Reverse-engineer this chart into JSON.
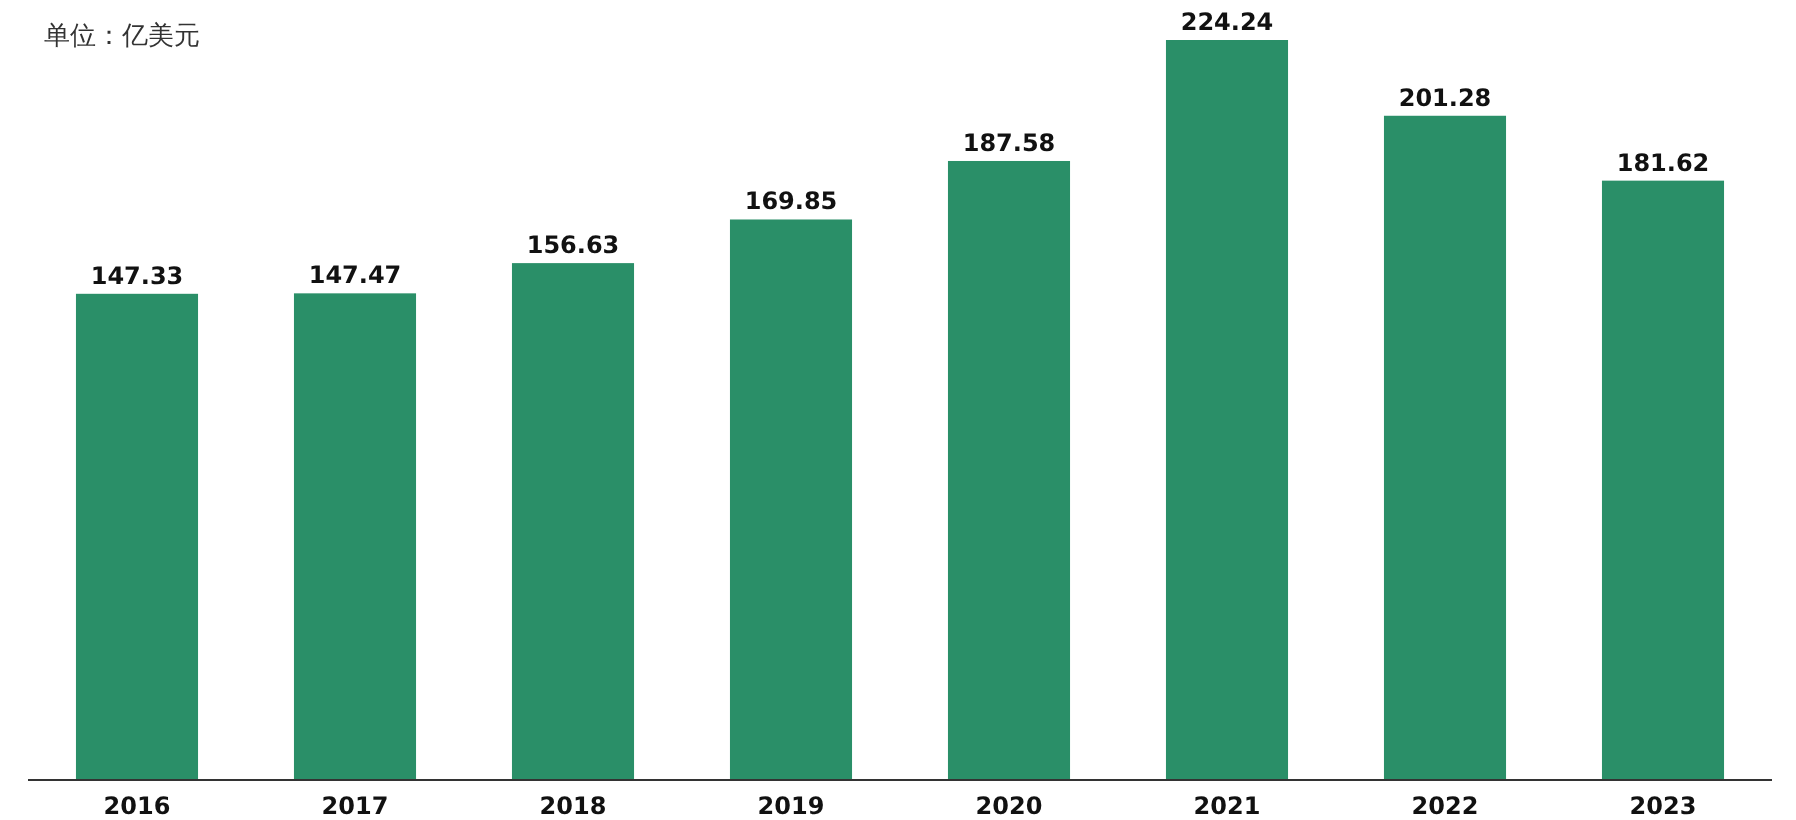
{
  "chart_data": {
    "type": "bar",
    "ylabel": "单位：亿美元",
    "categories": [
      "2016",
      "2017",
      "2018",
      "2019",
      "2020",
      "2021",
      "2022",
      "2023"
    ],
    "values": [
      147.33,
      147.47,
      156.63,
      169.85,
      187.58,
      224.24,
      201.28,
      181.62
    ],
    "color": "#2a8f68",
    "data_labels": true
  }
}
